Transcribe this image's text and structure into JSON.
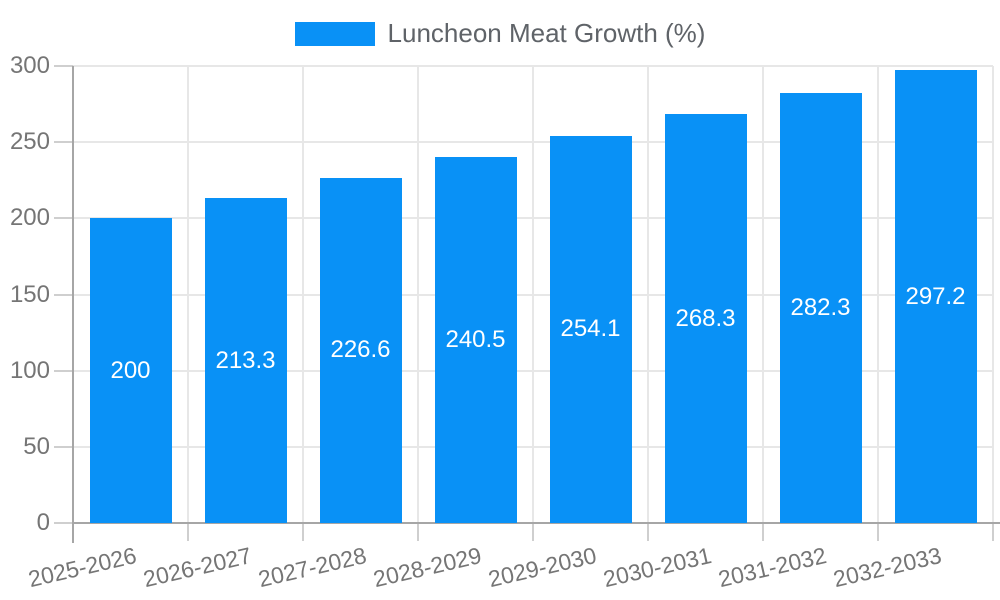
{
  "chart_data": {
    "type": "bar",
    "title": "Luncheon Meat Growth (%)",
    "legend": {
      "label": "Luncheon Meat Growth (%)",
      "position": "top"
    },
    "categories": [
      "2025-2026",
      "2026-2027",
      "2027-2028",
      "2028-2029",
      "2029-2030",
      "2030-2031",
      "2031-2032",
      "2032-2033"
    ],
    "values": [
      200,
      213.3,
      226.6,
      240.5,
      254.1,
      268.3,
      282.3,
      297.2
    ],
    "value_labels": [
      "200",
      "213.3",
      "226.6",
      "240.5",
      "254.1",
      "268.3",
      "282.3",
      "297.2"
    ],
    "xlabel": "",
    "ylabel": "",
    "ylim": [
      0,
      300
    ],
    "y_ticks": [
      0,
      50,
      100,
      150,
      200,
      250,
      300
    ],
    "grid": true,
    "colors": {
      "bar": "#0991F6",
      "grid": "#E7E7E7",
      "tick": "#CFCFCF",
      "axis": "#A6A6A6",
      "tick_label": "#757575",
      "legend_text": "#5F6368",
      "value_label": "#FFFFFF",
      "background": "#FFFFFF"
    }
  }
}
